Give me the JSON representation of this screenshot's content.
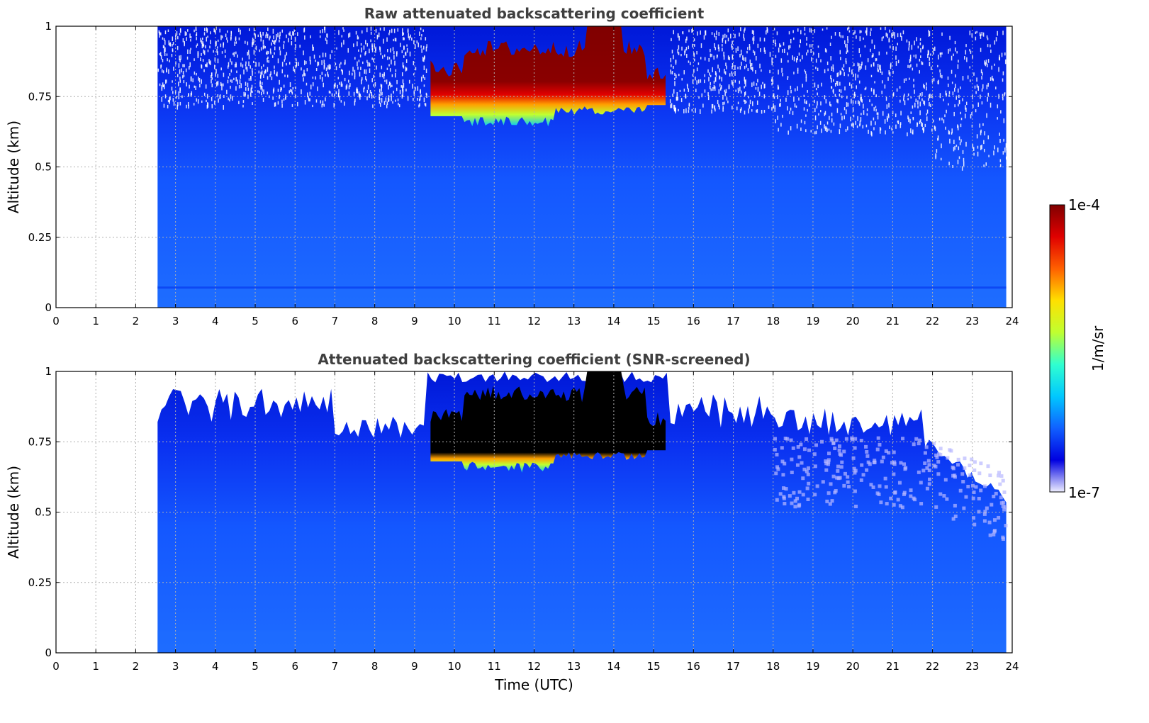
{
  "chart_data": [
    {
      "type": "heatmap",
      "title": "Raw attenuated backscattering coefficient",
      "xlabel": "",
      "ylabel": "Altitude (km)",
      "xlim": [
        0,
        24
      ],
      "ylim": [
        0,
        1
      ],
      "xticks": [
        "0",
        "1",
        "2",
        "3",
        "4",
        "5",
        "6",
        "7",
        "8",
        "9",
        "10",
        "11",
        "12",
        "13",
        "14",
        "15",
        "16",
        "17",
        "18",
        "19",
        "20",
        "21",
        "22",
        "23",
        "24"
      ],
      "yticks": [
        "0",
        "0.25",
        "0.5",
        "0.75",
        "1"
      ],
      "grid": true,
      "data_extent_hours": [
        2.55,
        23.85
      ],
      "cloud": {
        "time_range_utc": [
          9.4,
          15.3
        ],
        "altitude_range_km": [
          0.62,
          1.0
        ],
        "level": "max"
      },
      "screened": false
    },
    {
      "type": "heatmap",
      "title": "Attenuated backscattering coefficient (SNR-screened)",
      "xlabel": "Time (UTC)",
      "ylabel": "Altitude (km)",
      "xlim": [
        0,
        24
      ],
      "ylim": [
        0,
        1
      ],
      "xticks": [
        "0",
        "1",
        "2",
        "3",
        "4",
        "5",
        "6",
        "7",
        "8",
        "9",
        "10",
        "11",
        "12",
        "13",
        "14",
        "15",
        "16",
        "17",
        "18",
        "19",
        "20",
        "21",
        "22",
        "23",
        "24"
      ],
      "yticks": [
        "0",
        "0.25",
        "0.5",
        "0.75",
        "1"
      ],
      "grid": true,
      "data_extent_hours": [
        2.55,
        23.85
      ],
      "cloud": {
        "time_range_utc": [
          9.4,
          15.3
        ],
        "altitude_range_km": [
          0.62,
          1.0
        ],
        "level": "saturated (black)"
      },
      "screened": true
    }
  ],
  "colorbar": {
    "label": "1/m/sr",
    "min_label": "1e-7",
    "max_label": "1e-4",
    "colormap": "jet",
    "colors": [
      "#eeeeff",
      "#0000e0",
      "#1060ff",
      "#00c8ff",
      "#30ffd0",
      "#c0ff30",
      "#ffe000",
      "#ff6000",
      "#e00000",
      "#800000"
    ]
  }
}
